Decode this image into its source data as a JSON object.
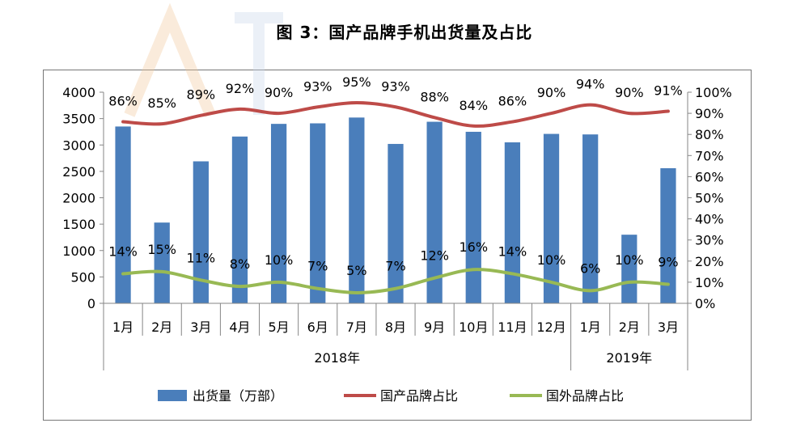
{
  "page": {
    "title": "图 3：国产品牌手机出货量及占比"
  },
  "chart_data": {
    "type": "bar",
    "title": "图 3：国产品牌手机出货量及占比",
    "categories": [
      "1月",
      "2月",
      "3月",
      "4月",
      "5月",
      "6月",
      "7月",
      "8月",
      "9月",
      "10月",
      "11月",
      "12月",
      "1月",
      "2月",
      "3月"
    ],
    "groups": [
      {
        "label": "2018年",
        "span": 12
      },
      {
        "label": "2019年",
        "span": 3
      }
    ],
    "series": [
      {
        "name": "出货量（万部）",
        "type": "bar",
        "axis": "left",
        "color": "#4a7ebb",
        "values": [
          3350,
          1530,
          2690,
          3160,
          3400,
          3410,
          3520,
          3020,
          3440,
          3250,
          3050,
          3210,
          3200,
          1300,
          2560
        ]
      },
      {
        "name": "国产品牌占比",
        "type": "line",
        "axis": "right",
        "color": "#be4b48",
        "values": [
          86,
          85,
          89,
          92,
          90,
          93,
          95,
          93,
          88,
          84,
          86,
          90,
          94,
          90,
          91
        ],
        "labels": [
          "86%",
          "85%",
          "89%",
          "92%",
          "90%",
          "93%",
          "95%",
          "93%",
          "88%",
          "84%",
          "86%",
          "90%",
          "94%",
          "90%",
          "91%"
        ]
      },
      {
        "name": "国外品牌占比",
        "type": "line",
        "axis": "right",
        "color": "#98b954",
        "values": [
          14,
          15,
          11,
          8,
          10,
          7,
          5,
          7,
          12,
          16,
          14,
          10,
          6,
          10,
          9
        ],
        "labels": [
          "14%",
          "15%",
          "11%",
          "8%",
          "10%",
          "7%",
          "5%",
          "7%",
          "12%",
          "16%",
          "14%",
          "10%",
          "6%",
          "10%",
          "9%"
        ]
      }
    ],
    "y_left": {
      "min": 0,
      "max": 4000,
      "ticks": [
        "0",
        "500",
        "1000",
        "1500",
        "2000",
        "2500",
        "3000",
        "3500",
        "4000"
      ]
    },
    "y_right": {
      "min": 0,
      "max": 100,
      "ticks": [
        "0%",
        "10%",
        "20%",
        "30%",
        "40%",
        "50%",
        "60%",
        "70%",
        "80%",
        "90%",
        "100%"
      ]
    },
    "grid": false,
    "legend_position": "bottom"
  }
}
